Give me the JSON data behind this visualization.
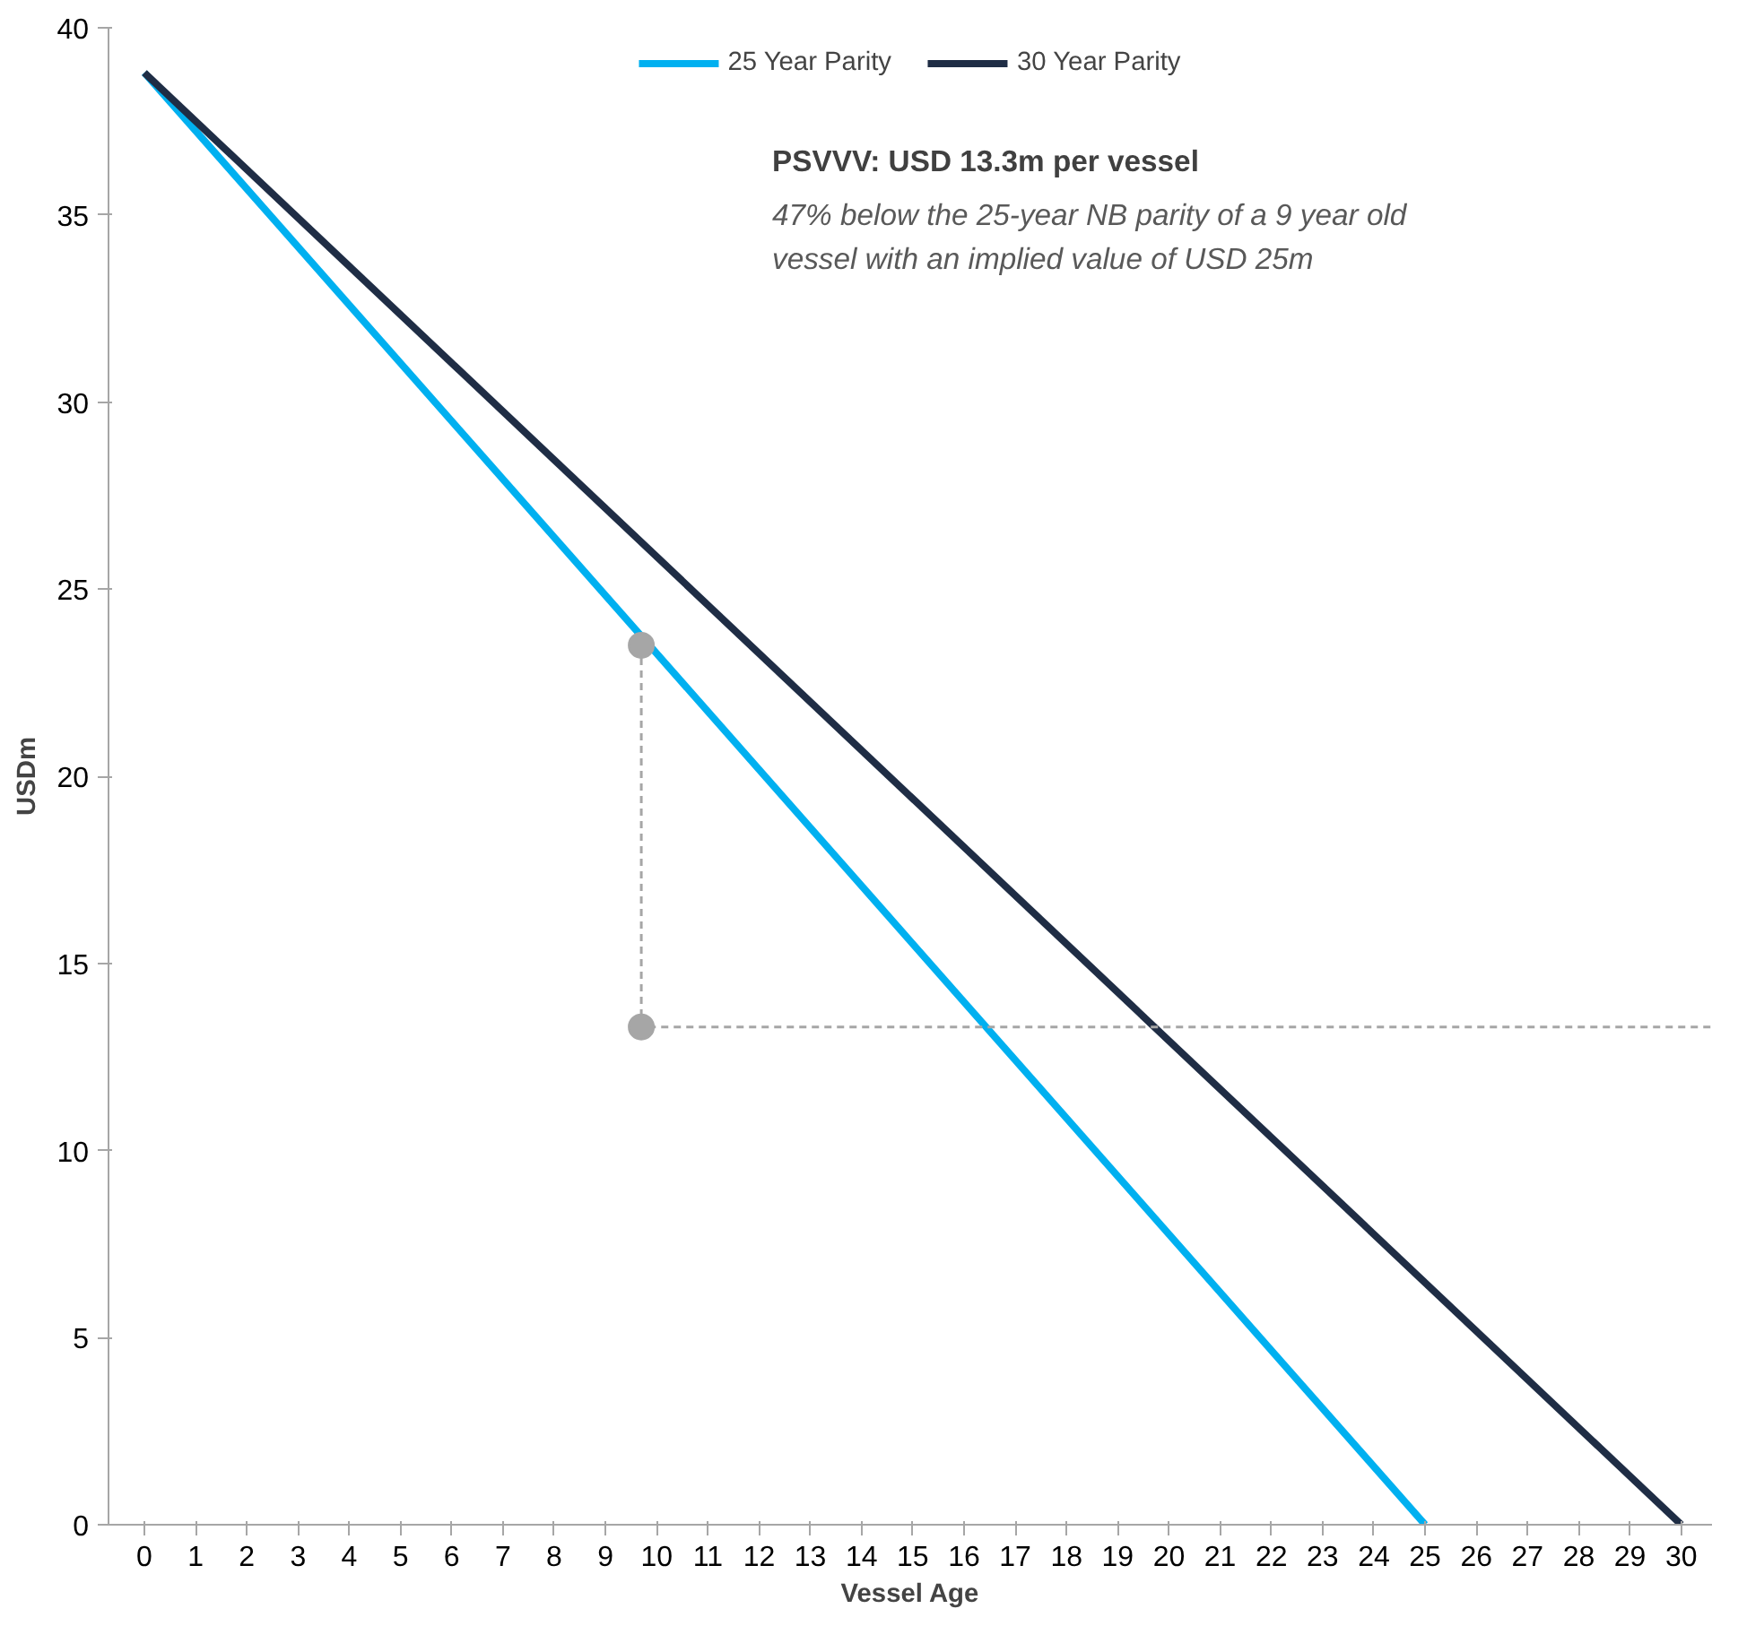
{
  "chart_data": {
    "type": "line",
    "xlabel": "Vessel Age",
    "ylabel": "USDm",
    "xlim": [
      -0.7,
      30.6
    ],
    "xticks": [
      0,
      1,
      2,
      3,
      4,
      5,
      6,
      7,
      8,
      9,
      10,
      11,
      12,
      13,
      14,
      15,
      16,
      17,
      18,
      19,
      20,
      21,
      22,
      23,
      24,
      25,
      26,
      27,
      28,
      29,
      30
    ],
    "ylim": [
      0,
      40
    ],
    "yticks": [
      0,
      5,
      10,
      15,
      20,
      25,
      30,
      35,
      40
    ],
    "grid": false,
    "legend": "top",
    "series": [
      {
        "name": "25 Year Parity",
        "color": "#00b0f0",
        "x": [
          0,
          25
        ],
        "values": [
          38.8,
          0
        ],
        "marker": "none",
        "line_style": "solid"
      },
      {
        "name": "30 Year Parity",
        "color": "#1f2d45",
        "x": [
          0,
          30
        ],
        "values": [
          38.8,
          0
        ],
        "marker": "none",
        "line_style": "solid"
      },
      {
        "color": "#a6a6a6",
        "x": [
          9.7,
          9.7,
          30.6
        ],
        "values": [
          23.5,
          13.3,
          13.3
        ],
        "marker": "none",
        "line_style": "dashed"
      },
      {
        "type": "scatter",
        "color": "#a6a6a6",
        "x": [
          9.7,
          9.7
        ],
        "values": [
          23.5,
          13.3
        ],
        "marker": "circle"
      }
    ],
    "annotations": [
      "PSVVV: USD 13.3m per vessel",
      "47% below the 25-year NB parity of a 9 year old\nvessel with an implied value of USD 25m"
    ]
  }
}
